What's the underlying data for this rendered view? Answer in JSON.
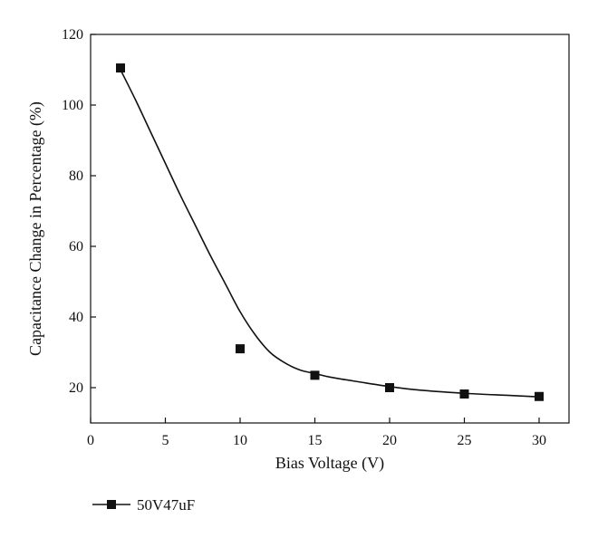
{
  "chart_data": {
    "type": "scatter",
    "title": "",
    "xlabel": "Bias Voltage (V)",
    "ylabel": "Capacitance Change in Percentage (%)",
    "xlim": [
      0,
      32
    ],
    "ylim": [
      10,
      120
    ],
    "xticks": [
      0,
      5,
      10,
      15,
      20,
      25,
      30
    ],
    "yticks": [
      20,
      40,
      60,
      80,
      100,
      120
    ],
    "grid": false,
    "legend_position": "bottom-left",
    "series": [
      {
        "name": "50V47uF",
        "marker": "square",
        "color": "#111111",
        "x": [
          2,
          10,
          15,
          20,
          25,
          30
        ],
        "y": [
          110.5,
          31,
          23.5,
          20,
          18.2,
          17.5
        ]
      }
    ],
    "fit_curve": {
      "color": "#111111",
      "x": [
        2,
        3,
        4,
        5,
        6,
        7,
        8,
        9,
        10,
        11,
        12,
        13,
        14,
        15,
        16,
        18,
        20,
        22,
        25,
        28,
        30
      ],
      "y": [
        110,
        101.5,
        92.5,
        83.5,
        74.5,
        66,
        57.5,
        49.5,
        41.5,
        35,
        30,
        27,
        25,
        24,
        23,
        21.6,
        20.3,
        19.3,
        18.4,
        17.8,
        17.4
      ]
    }
  }
}
